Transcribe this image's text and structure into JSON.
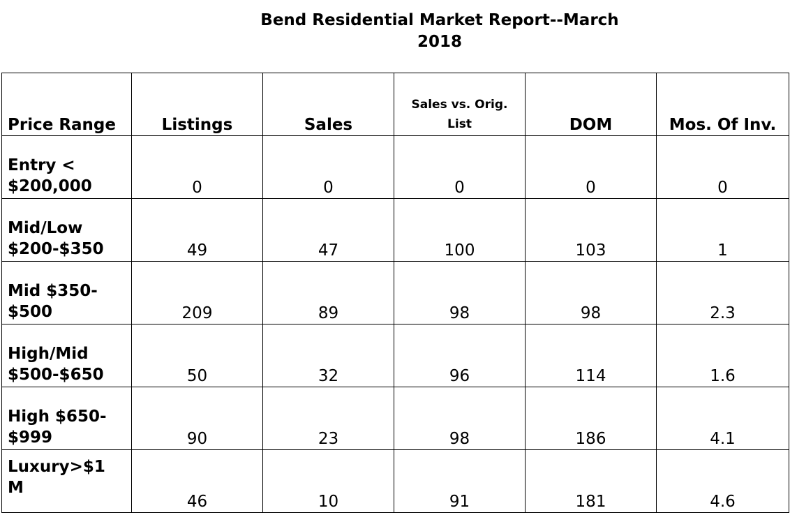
{
  "report": {
    "title_line1": "Bend Residential Market Report--March",
    "title_line2": "2018"
  },
  "table": {
    "headers": {
      "price_range": "Price Range",
      "listings": "Listings",
      "sales": "Sales",
      "sales_vs_orig_line1": "Sales vs. Orig.",
      "sales_vs_orig_line2": "List",
      "dom": "DOM",
      "mos_of_inv": "Mos. Of Inv."
    },
    "rows": [
      {
        "range_line1": "Entry <",
        "range_line2": "$200,000",
        "listings": "0",
        "sales": "0",
        "sales_vs_orig": "0",
        "dom": "0",
        "mos_of_inv": "0"
      },
      {
        "range_line1": "Mid/Low",
        "range_line2": "$200-$350",
        "listings": "49",
        "sales": "47",
        "sales_vs_orig": "100",
        "dom": "103",
        "mos_of_inv": "1"
      },
      {
        "range_line1": "Mid $350-",
        "range_line2": "$500",
        "listings": "209",
        "sales": "89",
        "sales_vs_orig": "98",
        "dom": "98",
        "mos_of_inv": "2.3"
      },
      {
        "range_line1": "High/Mid",
        "range_line2": "$500-$650",
        "listings": "50",
        "sales": "32",
        "sales_vs_orig": "96",
        "dom": "114",
        "mos_of_inv": "1.6"
      },
      {
        "range_line1": "High $650-",
        "range_line2": "$999",
        "listings": "90",
        "sales": "23",
        "sales_vs_orig": "98",
        "dom": "186",
        "mos_of_inv": "4.1"
      },
      {
        "range_line1": "Luxury>$1",
        "range_line2": "M",
        "listings": "46",
        "sales": "10",
        "sales_vs_orig": "91",
        "dom": "181",
        "mos_of_inv": "4.6"
      }
    ]
  }
}
